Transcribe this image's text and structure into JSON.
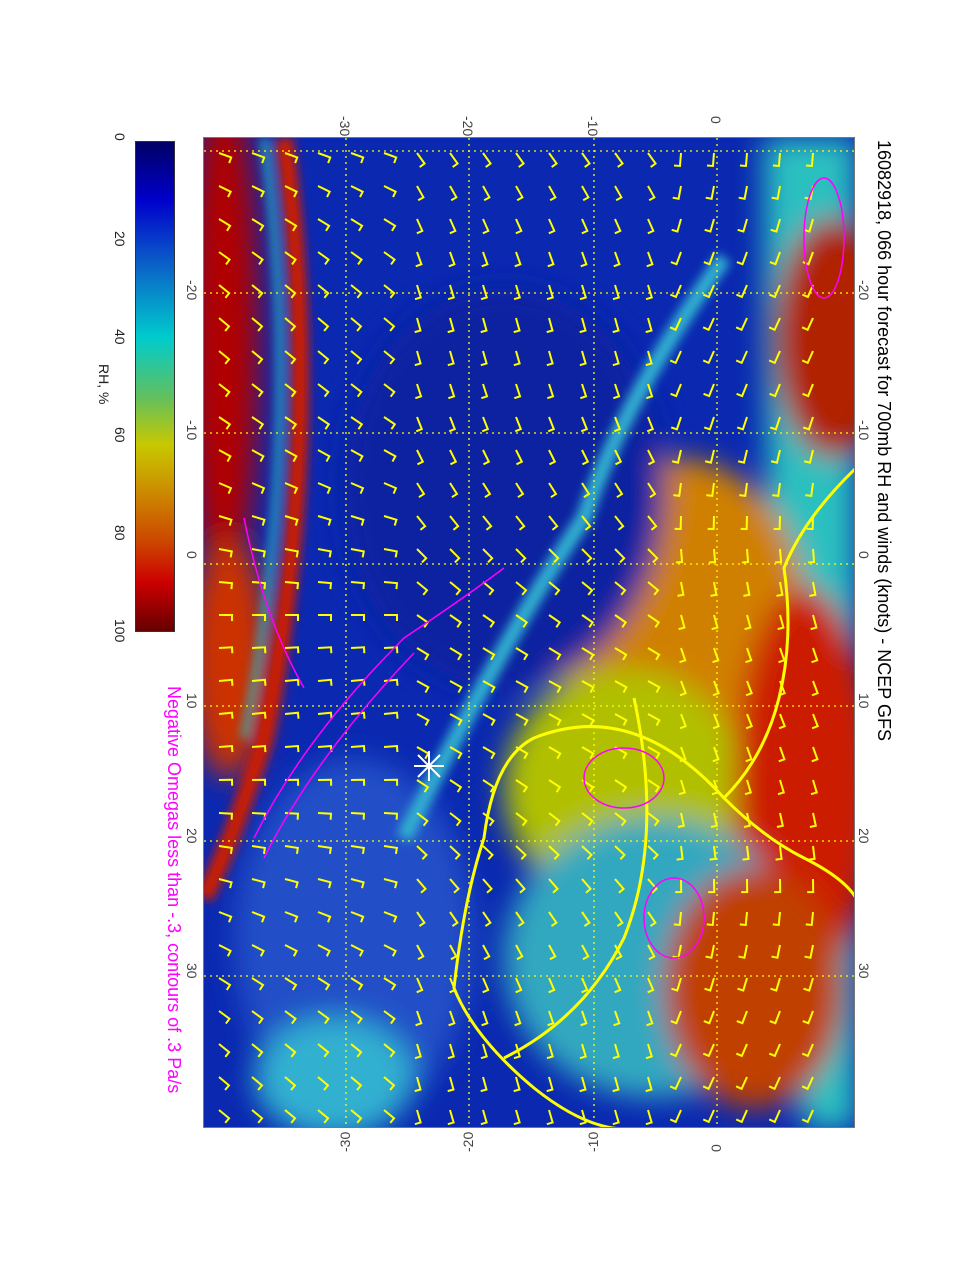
{
  "title": "16082918, 066 hour forecast for 700mb RH and winds (knots) - NCEP GFS",
  "omega_note": "Negative Omegas less than -.3, contours of .3 Pa/s",
  "colorbar": {
    "label": "RH, %",
    "ticks": [
      "0",
      "20",
      "40",
      "60",
      "80",
      "100"
    ],
    "range": [
      0,
      100
    ],
    "colormap": [
      "#000066",
      "#0000cc",
      "#0a60c8",
      "#00cccc",
      "#60c060",
      "#c8c800",
      "#cc8800",
      "#cc4400",
      "#cc0000",
      "#660000"
    ]
  },
  "axes": {
    "latitude_ticks": [
      "-30",
      "-20",
      "-10",
      "0"
    ],
    "longitude_ticks": [
      "-20",
      "-10",
      "0",
      "10",
      "20",
      "30"
    ]
  },
  "colors": {
    "wind_barbs": "#ffff00",
    "coastlines": "#ffff00",
    "omega_contours": "#ff00ff",
    "marker": "#ffffff"
  },
  "map": {
    "field": "700mb RH",
    "overlay": "wind barbs (knots)",
    "marker_icon": "star-asterisk"
  }
}
